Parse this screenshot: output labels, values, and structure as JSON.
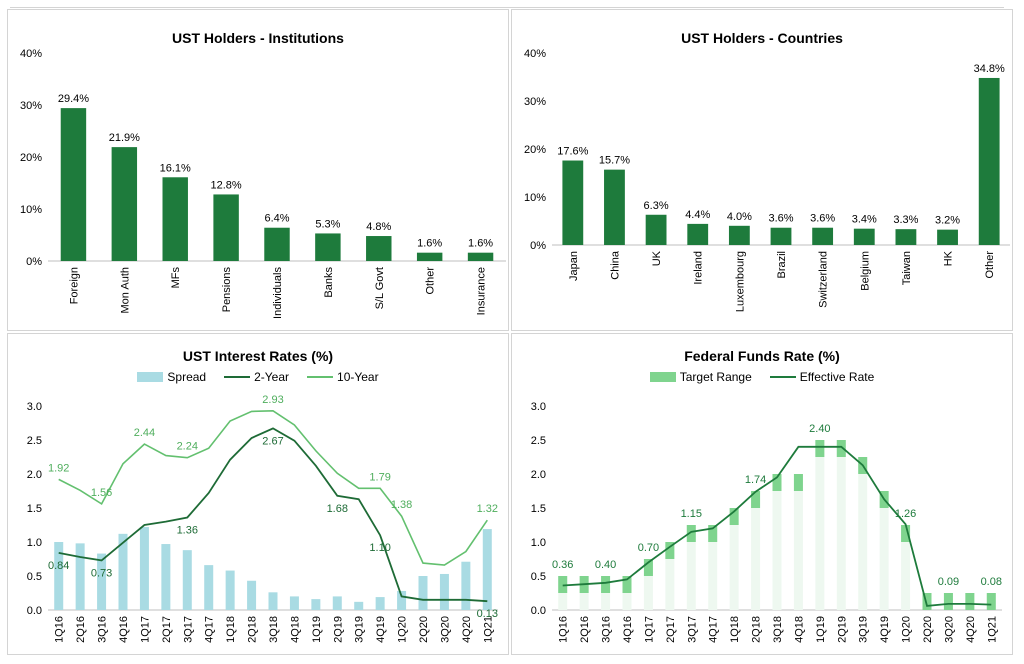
{
  "chart_data": [
    {
      "type": "bar",
      "title": "UST Holders - Institutions",
      "categories": [
        "Foreign",
        "Mon Auth",
        "MFs",
        "Pensions",
        "Individuals",
        "Banks",
        "S/L Govt",
        "Other",
        "Insurance"
      ],
      "values": [
        29.4,
        21.9,
        16.1,
        12.8,
        6.4,
        5.3,
        4.8,
        1.6,
        1.6
      ],
      "value_labels": [
        "29.4%",
        "21.9%",
        "16.1%",
        "12.8%",
        "6.4%",
        "5.3%",
        "4.8%",
        "1.6%",
        "1.6%"
      ],
      "yticks": [
        "0%",
        "10%",
        "20%",
        "30%",
        "40%"
      ],
      "ylim": [
        0,
        40
      ],
      "color": "#1e7b3c",
      "grid": false
    },
    {
      "type": "bar",
      "title": "UST Holders - Countries",
      "categories": [
        "Japan",
        "China",
        "UK",
        "Ireland",
        "Luxembourg",
        "Brazil",
        "Switzerland",
        "Belgium",
        "Taiwan",
        "HK",
        "Other"
      ],
      "values": [
        17.6,
        15.7,
        6.3,
        4.4,
        4.0,
        3.6,
        3.6,
        3.4,
        3.3,
        3.2,
        34.8
      ],
      "value_labels": [
        "17.6%",
        "15.7%",
        "6.3%",
        "4.4%",
        "4.0%",
        "3.6%",
        "3.6%",
        "3.4%",
        "3.3%",
        "3.2%",
        "34.8%"
      ],
      "yticks": [
        "0%",
        "10%",
        "20%",
        "30%",
        "40%"
      ],
      "ylim": [
        0,
        40
      ],
      "color": "#1e7b3c",
      "grid": false
    },
    {
      "type": "bar",
      "title": "UST Interest Rates (%)",
      "categories": [
        "1Q16",
        "2Q16",
        "3Q16",
        "4Q16",
        "1Q17",
        "2Q17",
        "3Q17",
        "4Q17",
        "1Q18",
        "2Q18",
        "3Q18",
        "4Q18",
        "1Q19",
        "2Q19",
        "3Q19",
        "4Q19",
        "1Q20",
        "2Q20",
        "3Q20",
        "4Q20",
        "1Q21"
      ],
      "yticks": [
        "0.0",
        "0.5",
        "1.0",
        "1.5",
        "2.0",
        "2.5",
        "3.0"
      ],
      "ylim": [
        0,
        3.0
      ],
      "series": [
        {
          "name": "Spread",
          "kind": "bar",
          "color": "#a9dbe3",
          "values": [
            1.0,
            0.98,
            0.83,
            1.12,
            1.22,
            0.97,
            0.88,
            0.66,
            0.58,
            0.43,
            0.26,
            0.2,
            0.16,
            0.2,
            0.12,
            0.19,
            0.28,
            0.5,
            0.53,
            0.71,
            1.19
          ]
        },
        {
          "name": "2-Year",
          "kind": "line",
          "color": "#1e6b36",
          "values": [
            0.84,
            0.78,
            0.73,
            0.99,
            1.25,
            1.3,
            1.36,
            1.72,
            2.21,
            2.53,
            2.67,
            2.49,
            2.12,
            1.68,
            1.63,
            1.1,
            0.2,
            0.15,
            0.15,
            0.15,
            0.13
          ],
          "labels": [
            {
              "index": 0,
              "text": "0.84"
            },
            {
              "index": 2,
              "text": "0.73"
            },
            {
              "index": 6,
              "text": "1.36"
            },
            {
              "index": 10,
              "text": "2.67"
            },
            {
              "index": 13,
              "text": "1.68"
            },
            {
              "index": 15,
              "text": "1.10"
            },
            {
              "index": 20,
              "text": "0.13"
            }
          ]
        },
        {
          "name": "10-Year",
          "kind": "line",
          "color": "#63c06f",
          "values": [
            1.92,
            1.76,
            1.56,
            2.15,
            2.44,
            2.27,
            2.24,
            2.38,
            2.78,
            2.92,
            2.93,
            2.72,
            2.34,
            2.01,
            1.79,
            1.79,
            1.38,
            0.69,
            0.66,
            0.86,
            1.32
          ],
          "labels": [
            {
              "index": 0,
              "text": "1.92"
            },
            {
              "index": 2,
              "text": "1.56"
            },
            {
              "index": 4,
              "text": "2.44"
            },
            {
              "index": 6,
              "text": "2.24"
            },
            {
              "index": 10,
              "text": "2.93"
            },
            {
              "index": 15,
              "text": "1.79"
            },
            {
              "index": 16,
              "text": "1.38"
            },
            {
              "index": 20,
              "text": "1.32"
            }
          ]
        }
      ],
      "legend": "top",
      "grid": false
    },
    {
      "type": "line",
      "title": "Federal Funds Rate (%)",
      "categories": [
        "1Q16",
        "2Q16",
        "3Q16",
        "4Q16",
        "1Q17",
        "2Q17",
        "3Q17",
        "4Q17",
        "1Q18",
        "2Q18",
        "3Q18",
        "4Q18",
        "1Q19",
        "2Q19",
        "3Q19",
        "4Q19",
        "1Q20",
        "2Q20",
        "3Q20",
        "4Q20",
        "1Q21"
      ],
      "yticks": [
        "0.0",
        "0.5",
        "1.0",
        "1.5",
        "2.0",
        "2.5",
        "3.0"
      ],
      "ylim": [
        0,
        3.0
      ],
      "series": [
        {
          "name": "Target Range",
          "kind": "range",
          "color": "#7fd48e",
          "low": [
            0.25,
            0.25,
            0.25,
            0.25,
            0.5,
            0.75,
            1.0,
            1.0,
            1.25,
            1.5,
            1.75,
            1.75,
            2.25,
            2.25,
            2.0,
            1.5,
            1.0,
            0.0,
            0.0,
            0.0,
            0.0
          ],
          "high": [
            0.5,
            0.5,
            0.5,
            0.5,
            0.75,
            1.0,
            1.25,
            1.25,
            1.5,
            1.75,
            2.0,
            2.0,
            2.5,
            2.5,
            2.25,
            1.75,
            1.25,
            0.25,
            0.25,
            0.25,
            0.25
          ]
        },
        {
          "name": "Effective Rate",
          "kind": "line",
          "color": "#1e7b3c",
          "values": [
            0.36,
            0.38,
            0.4,
            0.45,
            0.7,
            0.93,
            1.15,
            1.2,
            1.45,
            1.74,
            1.95,
            2.4,
            2.4,
            2.4,
            2.13,
            1.63,
            1.26,
            0.06,
            0.09,
            0.09,
            0.08
          ],
          "labels": [
            {
              "index": 0,
              "text": "0.36"
            },
            {
              "index": 2,
              "text": "0.40"
            },
            {
              "index": 4,
              "text": "0.70"
            },
            {
              "index": 6,
              "text": "1.15"
            },
            {
              "index": 9,
              "text": "1.74"
            },
            {
              "index": 12,
              "text": "2.40"
            },
            {
              "index": 16,
              "text": "1.26"
            },
            {
              "index": 18,
              "text": "0.09"
            },
            {
              "index": 20,
              "text": "0.08"
            }
          ]
        }
      ],
      "legend": "top",
      "grid": false
    }
  ]
}
